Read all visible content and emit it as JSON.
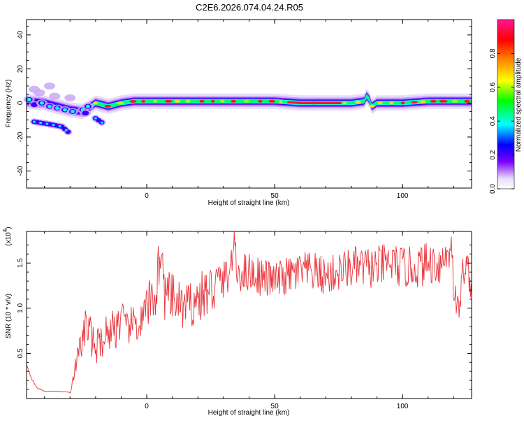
{
  "title": "C2E6.2026.074.04.24.R05",
  "chart_data": [
    {
      "type": "heatmap",
      "title": "C2E6.2026.074.04.24.R05",
      "xlabel": "Height of straight line (km)",
      "ylabel": "Frequency (Hz)",
      "xlim": [
        -47,
        127
      ],
      "ylim": [
        -50,
        49
      ],
      "xticks": [
        0,
        50,
        100
      ],
      "yticks": [
        -40,
        -20,
        0,
        20,
        40
      ],
      "colorbar": {
        "label": "Normalized spectral amplitude",
        "range": [
          0,
          1
        ],
        "ticks": [
          0.0,
          0.2,
          0.4,
          0.6,
          0.8
        ]
      },
      "ridge": {
        "description": "main spectral ridge (frequency vs height)",
        "x": [
          -47,
          -40,
          -35,
          -30,
          -25,
          -22,
          -20,
          -15,
          -10,
          -5,
          0,
          10,
          20,
          30,
          40,
          50,
          60,
          70,
          80,
          85,
          86,
          87,
          88,
          90,
          100,
          110,
          120,
          127
        ],
        "y": [
          1,
          0,
          -2,
          -4,
          -5,
          -2,
          0,
          -2,
          0,
          1,
          1,
          1,
          1,
          1,
          1,
          1,
          0,
          0,
          0,
          1,
          4,
          2,
          -2,
          0,
          0,
          1,
          1,
          1
        ]
      },
      "secondary_branches": [
        {
          "x": [
            -44,
            -40,
            -36,
            -33,
            -30
          ],
          "y": [
            -11,
            -12,
            -13,
            -14,
            -18
          ]
        },
        {
          "x": [
            -20,
            -18,
            -17
          ],
          "y": [
            -9,
            -11,
            -12
          ]
        }
      ]
    },
    {
      "type": "line",
      "xlabel": "Height of straight line (km)",
      "ylabel": "SNR (10 * v/v)",
      "ylabel_exponent": "(x10",
      "ylabel_exponent_power": "4",
      "exponent_suffix": ")",
      "xlim": [
        -47,
        127
      ],
      "ylim": [
        0,
        1.85
      ],
      "xticks": [
        0,
        50,
        100
      ],
      "yticks": [
        0.5,
        1.0,
        1.5
      ],
      "series": [
        {
          "name": "SNR",
          "color": "#e8333a",
          "x": [
            -47,
            -45,
            -43,
            -40,
            -35,
            -30,
            -28,
            -26,
            -24,
            -22,
            -20,
            -18,
            -15,
            -12,
            -10,
            -8,
            -5,
            -3,
            -1,
            0,
            2,
            4,
            5,
            7,
            10,
            15,
            20,
            25,
            30,
            33,
            34,
            35,
            40,
            45,
            50,
            55,
            60,
            65,
            70,
            75,
            80,
            85,
            90,
            95,
            100,
            105,
            110,
            115,
            118,
            119,
            120,
            122,
            124,
            127
          ],
          "y": [
            0.38,
            0.22,
            0.12,
            0.08,
            0.08,
            0.07,
            0.35,
            0.55,
            0.8,
            0.7,
            0.55,
            0.65,
            0.75,
            0.8,
            0.9,
            0.75,
            0.85,
            0.8,
            0.9,
            1.0,
            1.1,
            1.2,
            1.7,
            1.15,
            1.1,
            1.0,
            1.1,
            1.2,
            1.3,
            1.45,
            1.83,
            1.4,
            1.4,
            1.35,
            1.3,
            1.35,
            1.4,
            1.4,
            1.35,
            1.4,
            1.45,
            1.45,
            1.45,
            1.5,
            1.45,
            1.45,
            1.5,
            1.5,
            1.6,
            1.85,
            1.2,
            0.95,
            1.5,
            1.3
          ]
        }
      ]
    }
  ]
}
